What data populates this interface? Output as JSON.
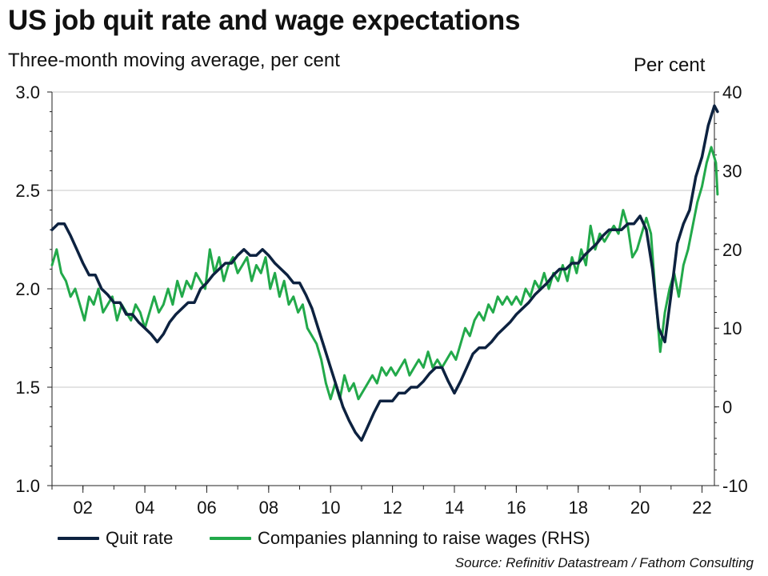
{
  "chart_data": {
    "type": "line",
    "title": "US job quit rate and wage expectations",
    "subtitle": "Three-month moving average, per cent",
    "y2_unit_label": "Per cent",
    "xlabel": "",
    "x_tick_labels": [
      "02",
      "04",
      "06",
      "08",
      "10",
      "12",
      "14",
      "16",
      "18",
      "20",
      "22"
    ],
    "x_ticks": [
      2002,
      2004,
      2006,
      2008,
      2010,
      2012,
      2014,
      2016,
      2018,
      2020,
      2022
    ],
    "xlim": [
      2001.0,
      2022.4
    ],
    "ylim_left": [
      1.0,
      3.0
    ],
    "y_ticks_left": [
      "1.0",
      "1.5",
      "2.0",
      "2.5",
      "3.0"
    ],
    "ylim_right": [
      -10,
      40
    ],
    "y_ticks_right": [
      "-10",
      "0",
      "10",
      "20",
      "30",
      "40"
    ],
    "grid": "horizontal",
    "legend_position": "bottom",
    "series": [
      {
        "name": "Quit rate",
        "axis": "left",
        "color": "#0d2240",
        "points": [
          [
            2001.0,
            2.3
          ],
          [
            2001.2,
            2.33
          ],
          [
            2001.4,
            2.33
          ],
          [
            2001.6,
            2.27
          ],
          [
            2001.8,
            2.2
          ],
          [
            2002.0,
            2.13
          ],
          [
            2002.2,
            2.07
          ],
          [
            2002.4,
            2.07
          ],
          [
            2002.6,
            2.0
          ],
          [
            2002.8,
            1.97
          ],
          [
            2003.0,
            1.93
          ],
          [
            2003.2,
            1.93
          ],
          [
            2003.4,
            1.87
          ],
          [
            2003.6,
            1.87
          ],
          [
            2003.8,
            1.83
          ],
          [
            2004.0,
            1.8
          ],
          [
            2004.2,
            1.77
          ],
          [
            2004.4,
            1.73
          ],
          [
            2004.6,
            1.77
          ],
          [
            2004.8,
            1.83
          ],
          [
            2005.0,
            1.87
          ],
          [
            2005.2,
            1.9
          ],
          [
            2005.4,
            1.93
          ],
          [
            2005.6,
            1.93
          ],
          [
            2005.8,
            2.0
          ],
          [
            2006.0,
            2.03
          ],
          [
            2006.2,
            2.07
          ],
          [
            2006.4,
            2.1
          ],
          [
            2006.6,
            2.13
          ],
          [
            2006.8,
            2.13
          ],
          [
            2007.0,
            2.17
          ],
          [
            2007.2,
            2.2
          ],
          [
            2007.4,
            2.17
          ],
          [
            2007.6,
            2.17
          ],
          [
            2007.8,
            2.2
          ],
          [
            2008.0,
            2.17
          ],
          [
            2008.2,
            2.13
          ],
          [
            2008.4,
            2.1
          ],
          [
            2008.6,
            2.07
          ],
          [
            2008.8,
            2.03
          ],
          [
            2009.0,
            2.03
          ],
          [
            2009.2,
            1.97
          ],
          [
            2009.4,
            1.9
          ],
          [
            2009.6,
            1.8
          ],
          [
            2009.8,
            1.7
          ],
          [
            2010.0,
            1.6
          ],
          [
            2010.2,
            1.5
          ],
          [
            2010.4,
            1.4
          ],
          [
            2010.6,
            1.33
          ],
          [
            2010.8,
            1.27
          ],
          [
            2011.0,
            1.23
          ],
          [
            2011.2,
            1.3
          ],
          [
            2011.4,
            1.37
          ],
          [
            2011.6,
            1.43
          ],
          [
            2011.8,
            1.43
          ],
          [
            2012.0,
            1.43
          ],
          [
            2012.2,
            1.47
          ],
          [
            2012.4,
            1.47
          ],
          [
            2012.6,
            1.5
          ],
          [
            2012.8,
            1.5
          ],
          [
            2013.0,
            1.53
          ],
          [
            2013.2,
            1.57
          ],
          [
            2013.4,
            1.6
          ],
          [
            2013.6,
            1.6
          ],
          [
            2013.8,
            1.53
          ],
          [
            2014.0,
            1.47
          ],
          [
            2014.2,
            1.53
          ],
          [
            2014.4,
            1.6
          ],
          [
            2014.6,
            1.67
          ],
          [
            2014.8,
            1.7
          ],
          [
            2015.0,
            1.7
          ],
          [
            2015.2,
            1.73
          ],
          [
            2015.4,
            1.77
          ],
          [
            2015.6,
            1.8
          ],
          [
            2015.8,
            1.83
          ],
          [
            2016.0,
            1.87
          ],
          [
            2016.2,
            1.9
          ],
          [
            2016.4,
            1.93
          ],
          [
            2016.6,
            1.97
          ],
          [
            2016.8,
            2.0
          ],
          [
            2017.0,
            2.03
          ],
          [
            2017.2,
            2.07
          ],
          [
            2017.4,
            2.1
          ],
          [
            2017.6,
            2.1
          ],
          [
            2017.8,
            2.13
          ],
          [
            2018.0,
            2.13
          ],
          [
            2018.2,
            2.17
          ],
          [
            2018.4,
            2.2
          ],
          [
            2018.6,
            2.23
          ],
          [
            2018.8,
            2.27
          ],
          [
            2019.0,
            2.3
          ],
          [
            2019.2,
            2.3
          ],
          [
            2019.4,
            2.3
          ],
          [
            2019.6,
            2.33
          ],
          [
            2019.8,
            2.33
          ],
          [
            2020.0,
            2.37
          ],
          [
            2020.2,
            2.3
          ],
          [
            2020.4,
            2.1
          ],
          [
            2020.6,
            1.8
          ],
          [
            2020.8,
            1.73
          ],
          [
            2021.0,
            1.97
          ],
          [
            2021.2,
            2.23
          ],
          [
            2021.4,
            2.33
          ],
          [
            2021.6,
            2.4
          ],
          [
            2021.8,
            2.57
          ],
          [
            2022.0,
            2.67
          ],
          [
            2022.2,
            2.83
          ],
          [
            2022.4,
            2.93
          ],
          [
            2022.5,
            2.9
          ]
        ]
      },
      {
        "name": "Companies planning to raise wages (RHS)",
        "axis": "right",
        "color": "#22a94a",
        "points": [
          [
            2001.0,
            18
          ],
          [
            2001.15,
            20
          ],
          [
            2001.3,
            17
          ],
          [
            2001.45,
            16
          ],
          [
            2001.6,
            14
          ],
          [
            2001.75,
            15
          ],
          [
            2001.9,
            13
          ],
          [
            2002.05,
            11
          ],
          [
            2002.2,
            14
          ],
          [
            2002.35,
            13
          ],
          [
            2002.5,
            15
          ],
          [
            2002.65,
            12
          ],
          [
            2002.8,
            13
          ],
          [
            2002.95,
            14
          ],
          [
            2003.1,
            11
          ],
          [
            2003.25,
            13
          ],
          [
            2003.4,
            12
          ],
          [
            2003.55,
            11
          ],
          [
            2003.7,
            13
          ],
          [
            2003.85,
            12
          ],
          [
            2004.0,
            10
          ],
          [
            2004.15,
            12
          ],
          [
            2004.3,
            14
          ],
          [
            2004.45,
            12
          ],
          [
            2004.6,
            13
          ],
          [
            2004.75,
            15
          ],
          [
            2004.9,
            13
          ],
          [
            2005.05,
            16
          ],
          [
            2005.2,
            14
          ],
          [
            2005.35,
            16
          ],
          [
            2005.5,
            15
          ],
          [
            2005.65,
            17
          ],
          [
            2005.8,
            16
          ],
          [
            2005.95,
            15
          ],
          [
            2006.1,
            20
          ],
          [
            2006.25,
            17
          ],
          [
            2006.4,
            19
          ],
          [
            2006.55,
            16
          ],
          [
            2006.7,
            18
          ],
          [
            2006.85,
            19
          ],
          [
            2007.0,
            17
          ],
          [
            2007.15,
            18
          ],
          [
            2007.3,
            19
          ],
          [
            2007.45,
            16
          ],
          [
            2007.6,
            18
          ],
          [
            2007.75,
            17
          ],
          [
            2007.9,
            19
          ],
          [
            2008.05,
            15
          ],
          [
            2008.2,
            17
          ],
          [
            2008.35,
            14
          ],
          [
            2008.5,
            16
          ],
          [
            2008.65,
            13
          ],
          [
            2008.8,
            14
          ],
          [
            2008.95,
            12
          ],
          [
            2009.1,
            13
          ],
          [
            2009.25,
            10
          ],
          [
            2009.4,
            9
          ],
          [
            2009.55,
            8
          ],
          [
            2009.7,
            6
          ],
          [
            2009.85,
            3
          ],
          [
            2010.0,
            1
          ],
          [
            2010.15,
            3
          ],
          [
            2010.3,
            1
          ],
          [
            2010.45,
            4
          ],
          [
            2010.6,
            2
          ],
          [
            2010.75,
            3
          ],
          [
            2010.9,
            1
          ],
          [
            2011.05,
            2
          ],
          [
            2011.2,
            3
          ],
          [
            2011.35,
            4
          ],
          [
            2011.5,
            3
          ],
          [
            2011.65,
            5
          ],
          [
            2011.8,
            4
          ],
          [
            2011.95,
            5
          ],
          [
            2012.1,
            4
          ],
          [
            2012.25,
            5
          ],
          [
            2012.4,
            6
          ],
          [
            2012.55,
            4
          ],
          [
            2012.7,
            5
          ],
          [
            2012.85,
            6
          ],
          [
            2013.0,
            5
          ],
          [
            2013.15,
            7
          ],
          [
            2013.3,
            5
          ],
          [
            2013.45,
            6
          ],
          [
            2013.6,
            5
          ],
          [
            2013.75,
            6
          ],
          [
            2013.9,
            7
          ],
          [
            2014.05,
            6
          ],
          [
            2014.2,
            8
          ],
          [
            2014.35,
            10
          ],
          [
            2014.5,
            9
          ],
          [
            2014.65,
            11
          ],
          [
            2014.8,
            12
          ],
          [
            2014.95,
            11
          ],
          [
            2015.1,
            13
          ],
          [
            2015.25,
            12
          ],
          [
            2015.4,
            14
          ],
          [
            2015.55,
            13
          ],
          [
            2015.7,
            14
          ],
          [
            2015.85,
            13
          ],
          [
            2016.0,
            14
          ],
          [
            2016.15,
            13
          ],
          [
            2016.3,
            15
          ],
          [
            2016.45,
            14
          ],
          [
            2016.6,
            16
          ],
          [
            2016.75,
            15
          ],
          [
            2016.9,
            17
          ],
          [
            2017.05,
            15
          ],
          [
            2017.2,
            17
          ],
          [
            2017.35,
            16
          ],
          [
            2017.5,
            18
          ],
          [
            2017.65,
            16
          ],
          [
            2017.8,
            19
          ],
          [
            2017.95,
            17
          ],
          [
            2018.1,
            20
          ],
          [
            2018.25,
            18
          ],
          [
            2018.4,
            23
          ],
          [
            2018.55,
            20
          ],
          [
            2018.7,
            22
          ],
          [
            2018.85,
            21
          ],
          [
            2019.0,
            22
          ],
          [
            2019.15,
            23
          ],
          [
            2019.3,
            22
          ],
          [
            2019.45,
            25
          ],
          [
            2019.6,
            23
          ],
          [
            2019.75,
            19
          ],
          [
            2019.9,
            20
          ],
          [
            2020.05,
            22
          ],
          [
            2020.2,
            24
          ],
          [
            2020.35,
            22
          ],
          [
            2020.5,
            14
          ],
          [
            2020.65,
            7
          ],
          [
            2020.8,
            12
          ],
          [
            2020.95,
            15
          ],
          [
            2021.1,
            17
          ],
          [
            2021.25,
            14
          ],
          [
            2021.4,
            18
          ],
          [
            2021.55,
            20
          ],
          [
            2021.7,
            23
          ],
          [
            2021.85,
            26
          ],
          [
            2022.0,
            28
          ],
          [
            2022.15,
            31
          ],
          [
            2022.3,
            33
          ],
          [
            2022.45,
            31
          ],
          [
            2022.5,
            27
          ]
        ]
      }
    ],
    "source": "Source: Refinitiv Datastream / Fathom Consulting"
  }
}
